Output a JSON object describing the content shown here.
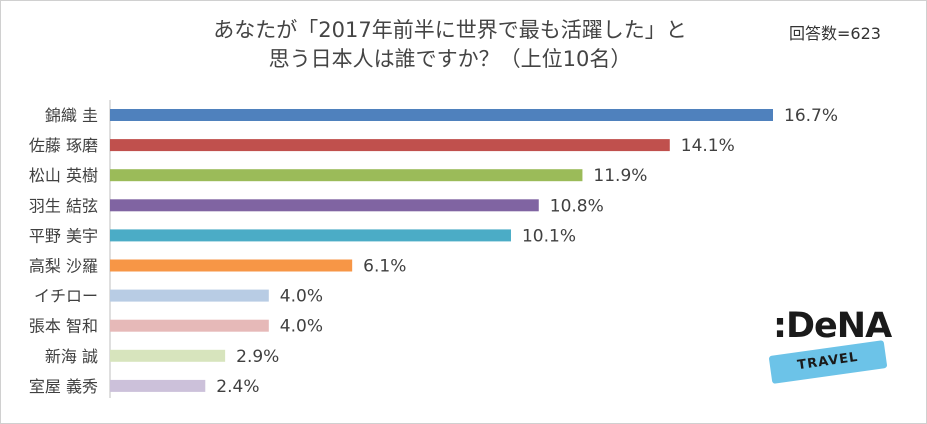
{
  "chart_data": {
    "type": "bar",
    "orientation": "horizontal",
    "title_lines": [
      "あなたが「2017年前半に世界で最も活躍した」と",
      "思う日本人は誰ですか？（上位10名）"
    ],
    "note": "回答数=623",
    "categories": [
      "錦織 圭",
      "佐藤 琢磨",
      "松山 英樹",
      "羽生 結弦",
      "平野 美宇",
      "高梨 沙羅",
      "イチロー",
      "張本 智和",
      "新海 誠",
      "室屋 義秀"
    ],
    "values": [
      16.7,
      14.1,
      11.9,
      10.8,
      10.1,
      6.1,
      4.0,
      4.0,
      2.9,
      2.4
    ],
    "labels": [
      "16.7%",
      "14.1%",
      "11.9%",
      "10.8%",
      "10.1%",
      "6.1%",
      "4.0%",
      "4.0%",
      "2.9%",
      "2.4%"
    ],
    "colors": [
      "#4f81bd",
      "#c0504d",
      "#9bbb59",
      "#8064a2",
      "#4bacc6",
      "#f79646",
      "#b8cce4",
      "#e6b9b8",
      "#d7e4bd",
      "#ccc1da"
    ],
    "xlim": [
      0,
      20
    ],
    "grid": false,
    "legend": false
  },
  "logo": {
    "name": ":DeNA",
    "tag": "TRAVEL"
  }
}
